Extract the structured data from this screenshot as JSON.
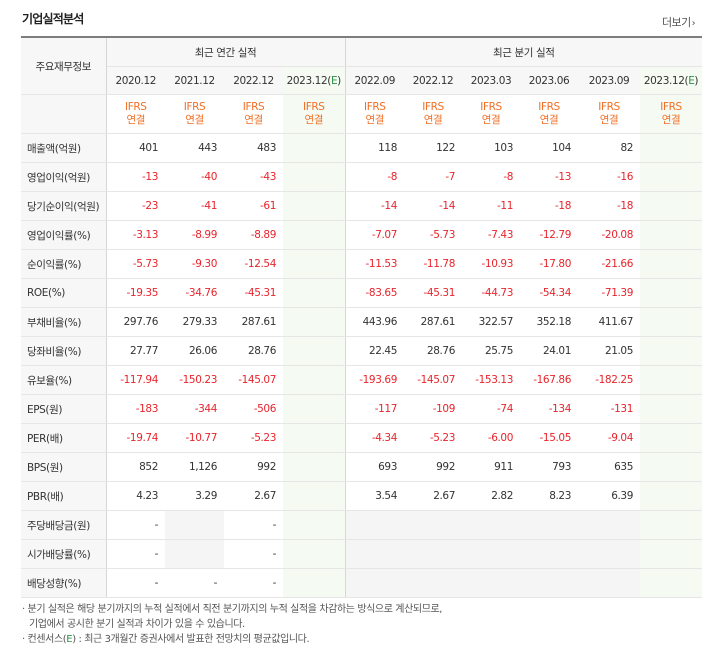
{
  "section_title": "기업실적분석",
  "more_label": "더보기",
  "more_arrow": "›",
  "corner_label": "주요재무정보",
  "annual_label": "최근 연간 실적",
  "quarter_label": "최근 분기 실적",
  "periods": [
    "2020.12",
    "2021.12",
    "2022.12",
    "2023.12(E)",
    "2022.09",
    "2022.12",
    "2023.03",
    "2023.06",
    "2023.09",
    "2023.12(E)"
  ],
  "ifrs": [
    "IFRS",
    "IFRS",
    "IFRS",
    "IFRS",
    "IFRS",
    "IFRS",
    "IFRS",
    "IFRS",
    "IFRS",
    "IFRS"
  ],
  "basis": [
    "연결",
    "연결",
    "연결",
    "연결",
    "연결",
    "연결",
    "연결",
    "연결",
    "연결",
    "연결"
  ],
  "rows": [
    {
      "label": "매출액(억원)",
      "values": [
        "401",
        "443",
        "483",
        "",
        "118",
        "122",
        "103",
        "104",
        "82",
        ""
      ]
    },
    {
      "label": "영업이익(억원)",
      "values": [
        "-13",
        "-40",
        "-43",
        "",
        "-8",
        "-7",
        "-8",
        "-13",
        "-16",
        ""
      ]
    },
    {
      "label": "당기순이익(억원)",
      "values": [
        "-23",
        "-41",
        "-61",
        "",
        "-14",
        "-14",
        "-11",
        "-18",
        "-18",
        ""
      ]
    },
    {
      "label": "영업이익률(%)",
      "values": [
        "-3.13",
        "-8.99",
        "-8.89",
        "",
        "-7.07",
        "-5.73",
        "-7.43",
        "-12.79",
        "-20.08",
        ""
      ]
    },
    {
      "label": "순이익률(%)",
      "values": [
        "-5.73",
        "-9.30",
        "-12.54",
        "",
        "-11.53",
        "-11.78",
        "-10.93",
        "-17.80",
        "-21.66",
        ""
      ]
    },
    {
      "label": "ROE(%)",
      "values": [
        "-19.35",
        "-34.76",
        "-45.31",
        "",
        "-83.65",
        "-45.31",
        "-44.73",
        "-54.34",
        "-71.39",
        ""
      ]
    },
    {
      "label": "부채비율(%)",
      "values": [
        "297.76",
        "279.33",
        "287.61",
        "",
        "443.96",
        "287.61",
        "322.57",
        "352.18",
        "411.67",
        ""
      ]
    },
    {
      "label": "당좌비율(%)",
      "values": [
        "27.77",
        "26.06",
        "28.76",
        "",
        "22.45",
        "28.76",
        "25.75",
        "24.01",
        "21.05",
        ""
      ]
    },
    {
      "label": "유보율(%)",
      "values": [
        "-117.94",
        "-150.23",
        "-145.07",
        "",
        "-193.69",
        "-145.07",
        "-153.13",
        "-167.86",
        "-182.25",
        ""
      ]
    },
    {
      "label": "EPS(원)",
      "values": [
        "-183",
        "-344",
        "-506",
        "",
        "-117",
        "-109",
        "-74",
        "-134",
        "-131",
        ""
      ]
    },
    {
      "label": "PER(배)",
      "values": [
        "-19.74",
        "-10.77",
        "-5.23",
        "",
        "-4.34",
        "-5.23",
        "-6.00",
        "-15.05",
        "-9.04",
        ""
      ]
    },
    {
      "label": "BPS(원)",
      "values": [
        "852",
        "1,126",
        "992",
        "",
        "693",
        "992",
        "911",
        "793",
        "635",
        ""
      ]
    },
    {
      "label": "PBR(배)",
      "values": [
        "4.23",
        "3.29",
        "2.67",
        "",
        "3.54",
        "2.67",
        "2.82",
        "8.23",
        "6.39",
        ""
      ]
    },
    {
      "label": "주당배당금(원)",
      "values": [
        "-",
        "",
        "-",
        "",
        "",
        "",
        "",
        "",
        "",
        ""
      ]
    },
    {
      "label": "시가배당률(%)",
      "values": [
        "-",
        "",
        "-",
        "",
        "",
        "",
        "",
        "",
        "",
        ""
      ]
    },
    {
      "label": "배당성향(%)",
      "values": [
        "-",
        "-",
        "-",
        "",
        "",
        "",
        "",
        "",
        "",
        ""
      ]
    }
  ],
  "notes": [
    "· 분기 실적은 해당 분기까지의 누적 실적에서 직전 분기까지의 누적 실적을 차감하는 방식으로 계산되므로,",
    "기업에서 공시한 분기 실적과 차이가 있을 수 있습니다.",
    "· 컨센서스(",
    "E",
    ") : 최근 3개월간 증권사에서 발표한 전망치의 평균값입니다."
  ],
  "colors": {
    "negative": "#e8242c",
    "ifrs": "#f06f25",
    "consensus_bg": "#f5fbf3",
    "estimate": "#2a9444"
  }
}
